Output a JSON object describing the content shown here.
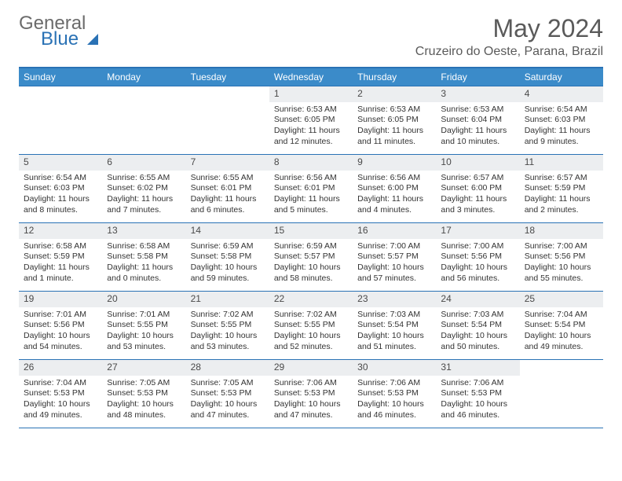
{
  "logo": {
    "text1": "General",
    "text2": "Blue"
  },
  "title": "May 2024",
  "location": "Cruzeiro do Oeste, Parana, Brazil",
  "colors": {
    "header_bg": "#3b8bc9",
    "border": "#2a72b5",
    "daynum_bg": "#eceef0",
    "text": "#333333",
    "title_text": "#5a5a5a"
  },
  "day_names": [
    "Sunday",
    "Monday",
    "Tuesday",
    "Wednesday",
    "Thursday",
    "Friday",
    "Saturday"
  ],
  "weeks": [
    [
      {
        "n": "",
        "empty": true
      },
      {
        "n": "",
        "empty": true
      },
      {
        "n": "",
        "empty": true
      },
      {
        "n": "1",
        "sr": "6:53 AM",
        "ss": "6:05 PM",
        "dl": "11 hours and 12 minutes."
      },
      {
        "n": "2",
        "sr": "6:53 AM",
        "ss": "6:05 PM",
        "dl": "11 hours and 11 minutes."
      },
      {
        "n": "3",
        "sr": "6:53 AM",
        "ss": "6:04 PM",
        "dl": "11 hours and 10 minutes."
      },
      {
        "n": "4",
        "sr": "6:54 AM",
        "ss": "6:03 PM",
        "dl": "11 hours and 9 minutes."
      }
    ],
    [
      {
        "n": "5",
        "sr": "6:54 AM",
        "ss": "6:03 PM",
        "dl": "11 hours and 8 minutes."
      },
      {
        "n": "6",
        "sr": "6:55 AM",
        "ss": "6:02 PM",
        "dl": "11 hours and 7 minutes."
      },
      {
        "n": "7",
        "sr": "6:55 AM",
        "ss": "6:01 PM",
        "dl": "11 hours and 6 minutes."
      },
      {
        "n": "8",
        "sr": "6:56 AM",
        "ss": "6:01 PM",
        "dl": "11 hours and 5 minutes."
      },
      {
        "n": "9",
        "sr": "6:56 AM",
        "ss": "6:00 PM",
        "dl": "11 hours and 4 minutes."
      },
      {
        "n": "10",
        "sr": "6:57 AM",
        "ss": "6:00 PM",
        "dl": "11 hours and 3 minutes."
      },
      {
        "n": "11",
        "sr": "6:57 AM",
        "ss": "5:59 PM",
        "dl": "11 hours and 2 minutes."
      }
    ],
    [
      {
        "n": "12",
        "sr": "6:58 AM",
        "ss": "5:59 PM",
        "dl": "11 hours and 1 minute."
      },
      {
        "n": "13",
        "sr": "6:58 AM",
        "ss": "5:58 PM",
        "dl": "11 hours and 0 minutes."
      },
      {
        "n": "14",
        "sr": "6:59 AM",
        "ss": "5:58 PM",
        "dl": "10 hours and 59 minutes."
      },
      {
        "n": "15",
        "sr": "6:59 AM",
        "ss": "5:57 PM",
        "dl": "10 hours and 58 minutes."
      },
      {
        "n": "16",
        "sr": "7:00 AM",
        "ss": "5:57 PM",
        "dl": "10 hours and 57 minutes."
      },
      {
        "n": "17",
        "sr": "7:00 AM",
        "ss": "5:56 PM",
        "dl": "10 hours and 56 minutes."
      },
      {
        "n": "18",
        "sr": "7:00 AM",
        "ss": "5:56 PM",
        "dl": "10 hours and 55 minutes."
      }
    ],
    [
      {
        "n": "19",
        "sr": "7:01 AM",
        "ss": "5:56 PM",
        "dl": "10 hours and 54 minutes."
      },
      {
        "n": "20",
        "sr": "7:01 AM",
        "ss": "5:55 PM",
        "dl": "10 hours and 53 minutes."
      },
      {
        "n": "21",
        "sr": "7:02 AM",
        "ss": "5:55 PM",
        "dl": "10 hours and 53 minutes."
      },
      {
        "n": "22",
        "sr": "7:02 AM",
        "ss": "5:55 PM",
        "dl": "10 hours and 52 minutes."
      },
      {
        "n": "23",
        "sr": "7:03 AM",
        "ss": "5:54 PM",
        "dl": "10 hours and 51 minutes."
      },
      {
        "n": "24",
        "sr": "7:03 AM",
        "ss": "5:54 PM",
        "dl": "10 hours and 50 minutes."
      },
      {
        "n": "25",
        "sr": "7:04 AM",
        "ss": "5:54 PM",
        "dl": "10 hours and 49 minutes."
      }
    ],
    [
      {
        "n": "26",
        "sr": "7:04 AM",
        "ss": "5:53 PM",
        "dl": "10 hours and 49 minutes."
      },
      {
        "n": "27",
        "sr": "7:05 AM",
        "ss": "5:53 PM",
        "dl": "10 hours and 48 minutes."
      },
      {
        "n": "28",
        "sr": "7:05 AM",
        "ss": "5:53 PM",
        "dl": "10 hours and 47 minutes."
      },
      {
        "n": "29",
        "sr": "7:06 AM",
        "ss": "5:53 PM",
        "dl": "10 hours and 47 minutes."
      },
      {
        "n": "30",
        "sr": "7:06 AM",
        "ss": "5:53 PM",
        "dl": "10 hours and 46 minutes."
      },
      {
        "n": "31",
        "sr": "7:06 AM",
        "ss": "5:53 PM",
        "dl": "10 hours and 46 minutes."
      },
      {
        "n": "",
        "empty": true
      }
    ]
  ],
  "labels": {
    "sunrise": "Sunrise:",
    "sunset": "Sunset:",
    "daylight": "Daylight:"
  }
}
